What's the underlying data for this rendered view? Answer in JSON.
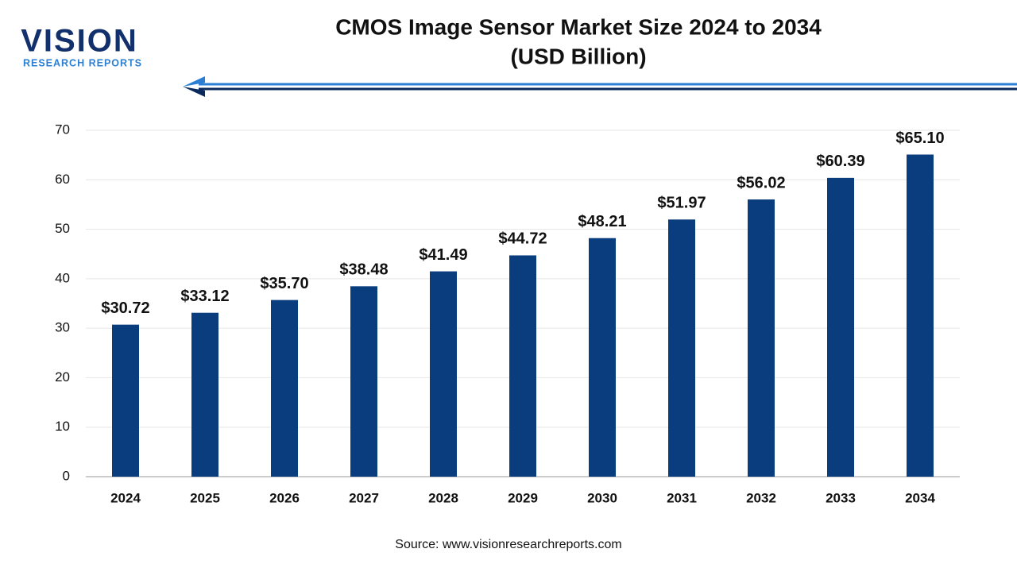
{
  "logo": {
    "name": "VISION",
    "tagline": "RESEARCH REPORTS"
  },
  "chart_data": {
    "type": "bar",
    "title": "CMOS Image Sensor Market Size 2024 to 2034",
    "subtitle": "(USD Billion)",
    "categories": [
      "2024",
      "2025",
      "2026",
      "2027",
      "2028",
      "2029",
      "2030",
      "2031",
      "2032",
      "2033",
      "2034"
    ],
    "values": [
      30.72,
      33.12,
      35.7,
      38.48,
      41.49,
      44.72,
      48.21,
      51.97,
      56.02,
      60.39,
      65.1
    ],
    "value_labels": [
      "$30.72",
      "$33.12",
      "$35.70",
      "$38.48",
      "$41.49",
      "$44.72",
      "$48.21",
      "$51.97",
      "$56.02",
      "$60.39",
      "$65.10"
    ],
    "color": "#0a3d7e",
    "ylim": [
      0,
      70
    ],
    "yticks": [
      0,
      10,
      20,
      30,
      40,
      50,
      60,
      70
    ],
    "grid": true,
    "source": "Source: www.visionresearchreports.com"
  }
}
